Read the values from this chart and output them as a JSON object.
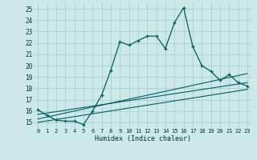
{
  "xlabel": "Humidex (Indice chaleur)",
  "bg_color": "#cce8e8",
  "grid_color": "#aacfcf",
  "line_color": "#005f5f",
  "xlim": [
    -0.5,
    23.5
  ],
  "ylim": [
    14.5,
    25.5
  ],
  "main_x": [
    0,
    1,
    2,
    3,
    4,
    5,
    6,
    7,
    8,
    9,
    10,
    11,
    12,
    13,
    14,
    15,
    16,
    17,
    18,
    19,
    20,
    21,
    22,
    23
  ],
  "main_y": [
    16.1,
    15.6,
    15.2,
    15.1,
    15.1,
    14.8,
    16.0,
    17.4,
    19.6,
    22.1,
    21.8,
    22.2,
    22.6,
    22.6,
    21.5,
    23.8,
    25.1,
    21.7,
    20.0,
    19.5,
    18.7,
    19.2,
    18.5,
    18.2
  ],
  "trend1_x": [
    0,
    23
  ],
  "trend1_y": [
    15.3,
    19.3
  ],
  "trend2_x": [
    0,
    23
  ],
  "trend2_y": [
    15.0,
    17.9
  ],
  "trend3_x": [
    0,
    23
  ],
  "trend3_y": [
    15.7,
    18.5
  ],
  "yticks": [
    15,
    16,
    17,
    18,
    19,
    20,
    21,
    22,
    23,
    24,
    25
  ],
  "xtick_labels": [
    "0",
    "1",
    "2",
    "3",
    "4",
    "5",
    "6",
    "7",
    "8",
    "9",
    "10",
    "11",
    "12",
    "13",
    "14",
    "15",
    "16",
    "17",
    "18",
    "19",
    "20",
    "21",
    "22",
    "23"
  ]
}
